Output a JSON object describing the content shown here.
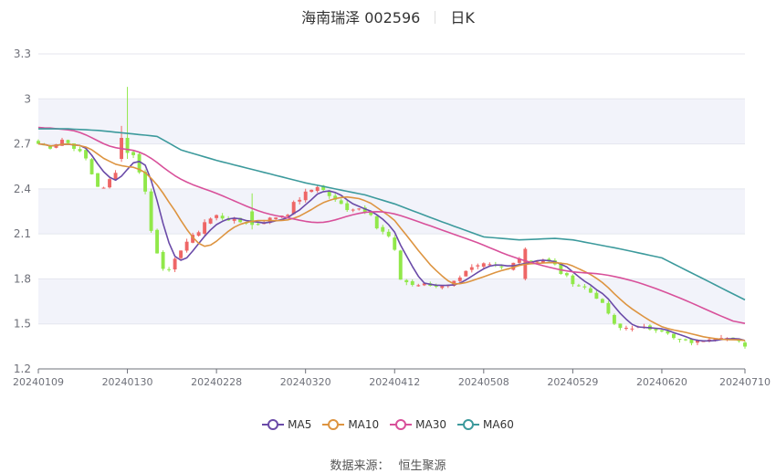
{
  "header": {
    "stock": "海南瑞泽 002596",
    "period": "日K"
  },
  "source": {
    "label": "数据来源：",
    "value": "恒生聚源"
  },
  "colors": {
    "up": "#ee6666",
    "down": "#91e84a",
    "MA5": "#6a4aa8",
    "MA10": "#dd9440",
    "MA30": "#d8509a",
    "MA60": "#3c9a9c",
    "band": "#f2f3fa",
    "grid": "#e4e6ee",
    "axis": "#6e7079"
  },
  "chart_data": {
    "type": "candlestick",
    "ylim": [
      1.2,
      3.3
    ],
    "yticks": [
      "1.2",
      "1.5",
      "1.8",
      "2.1",
      "2.4",
      "2.7",
      "3",
      "3.3"
    ],
    "ytick_values": [
      1.2,
      1.5,
      1.8,
      2.1,
      2.4,
      2.7,
      3.0,
      3.3
    ],
    "x_range": [
      "20240109",
      "20240710"
    ],
    "xticks": [
      "20240109",
      "20240130",
      "20240228",
      "20240320",
      "20240412",
      "20240508",
      "20240529",
      "20240620",
      "20240710"
    ],
    "legend": [
      "MA5",
      "MA10",
      "MA30",
      "MA60"
    ],
    "legend_position": "bottom",
    "close_anchors": [
      [
        "20240109",
        2.7
      ],
      [
        "20240111",
        2.68
      ],
      [
        "20240115",
        2.73
      ],
      [
        "20240117",
        2.68
      ],
      [
        "20240119",
        2.6
      ],
      [
        "20240122",
        2.5
      ],
      [
        "20240123",
        2.42
      ],
      [
        "20240124",
        2.4
      ],
      [
        "20240125",
        2.46
      ],
      [
        "20240126",
        2.52
      ],
      [
        "20240129",
        2.63
      ],
      [
        "20240130",
        2.65
      ],
      [
        "20240131",
        2.62
      ],
      [
        "20240201",
        2.52
      ],
      [
        "20240202",
        2.38
      ],
      [
        "20240205",
        2.12
      ],
      [
        "20240206",
        1.98
      ],
      [
        "20240207",
        1.88
      ],
      [
        "20240208",
        1.85
      ],
      [
        "20240219",
        1.92
      ],
      [
        "20240220",
        2.0
      ],
      [
        "20240221",
        2.05
      ],
      [
        "20240222",
        2.08
      ],
      [
        "20240223",
        2.12
      ],
      [
        "20240226",
        2.18
      ],
      [
        "20240228",
        2.22
      ],
      [
        "20240301",
        2.2
      ],
      [
        "20240305",
        2.18
      ],
      [
        "20240308",
        2.17
      ],
      [
        "20240312",
        2.2
      ],
      [
        "20240315",
        2.24
      ],
      [
        "20240318",
        2.3
      ],
      [
        "20240320",
        2.37
      ],
      [
        "20240322",
        2.42
      ],
      [
        "20240325",
        2.39
      ],
      [
        "20240327",
        2.32
      ],
      [
        "20240329",
        2.27
      ],
      [
        "20240402",
        2.27
      ],
      [
        "20240405",
        2.24
      ],
      [
        "20240409",
        2.14
      ],
      [
        "20240411",
        2.08
      ],
      [
        "20240412",
        1.98
      ],
      [
        "20240415",
        1.8
      ],
      [
        "20240417",
        1.76
      ],
      [
        "20240419",
        1.76
      ],
      [
        "20240423",
        1.75
      ],
      [
        "20240426",
        1.78
      ],
      [
        "20240430",
        1.86
      ],
      [
        "20240508",
        1.89
      ],
      [
        "20240510",
        1.88
      ],
      [
        "20240514",
        1.86
      ],
      [
        "20240516",
        1.95
      ],
      [
        "20240520",
        1.92
      ],
      [
        "20240522",
        1.93
      ],
      [
        "20240524",
        1.89
      ],
      [
        "20240527",
        1.84
      ],
      [
        "20240529",
        1.78
      ],
      [
        "20240531",
        1.74
      ],
      [
        "20240604",
        1.68
      ],
      [
        "20240606",
        1.57
      ],
      [
        "20240607",
        1.49
      ],
      [
        "20240611",
        1.47
      ],
      [
        "20240613",
        1.48
      ],
      [
        "20240617",
        1.47
      ],
      [
        "20240619",
        1.47
      ],
      [
        "20240620",
        1.46
      ],
      [
        "20240624",
        1.4
      ],
      [
        "20240626",
        1.38
      ],
      [
        "20240628",
        1.38
      ],
      [
        "20240702",
        1.41
      ],
      [
        "20240704",
        1.42
      ],
      [
        "20240708",
        1.39
      ],
      [
        "20240710",
        1.36
      ]
    ],
    "ma60_anchors": [
      [
        "20240109",
        2.8
      ],
      [
        "20240116",
        2.8
      ],
      [
        "20240123",
        2.79
      ],
      [
        "20240130",
        2.77
      ],
      [
        "20240206",
        2.75
      ],
      [
        "20240220",
        2.66
      ],
      [
        "20240228",
        2.59
      ],
      [
        "20240312",
        2.5
      ],
      [
        "20240320",
        2.44
      ],
      [
        "20240403",
        2.36
      ],
      [
        "20240412",
        2.3
      ],
      [
        "20240424",
        2.18
      ],
      [
        "20240508",
        2.08
      ],
      [
        "20240516",
        2.06
      ],
      [
        "20240524",
        2.07
      ],
      [
        "20240529",
        2.06
      ],
      [
        "20240611",
        2.0
      ],
      [
        "20240620",
        1.94
      ],
      [
        "20240702",
        1.78
      ],
      [
        "20240710",
        1.66
      ]
    ],
    "big_candles": [
      [
        "20240129",
        2.6,
        2.74,
        2.58,
        2.82
      ],
      [
        "20240130",
        2.74,
        2.64,
        2.6,
        3.08
      ],
      [
        "20240307",
        2.25,
        2.16,
        2.13,
        2.37
      ],
      [
        "20240517",
        1.8,
        2.0,
        1.79,
        2.01
      ]
    ]
  }
}
